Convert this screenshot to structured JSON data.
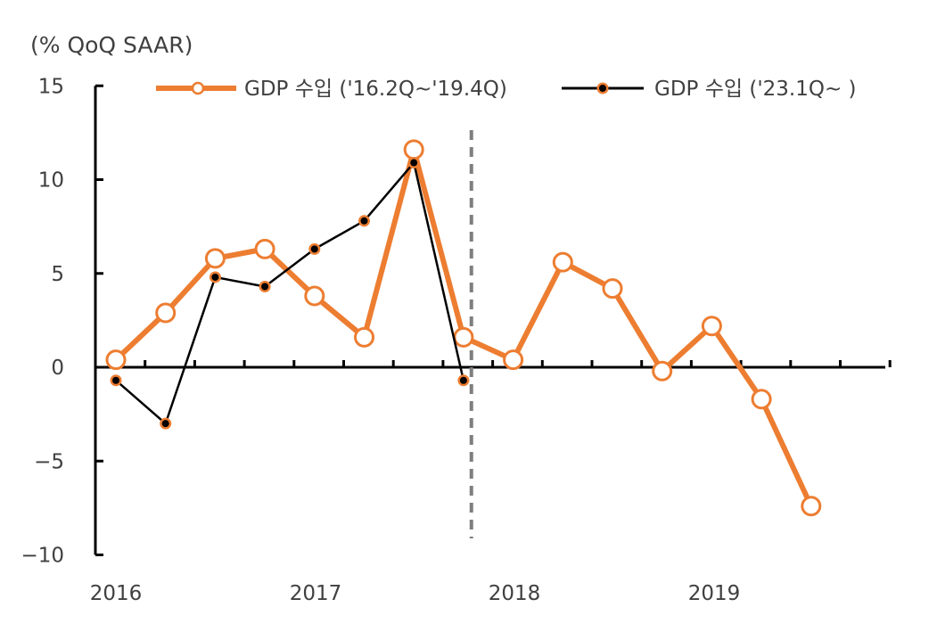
{
  "chart_data": {
    "type": "line",
    "unit_label": "(% QoQ SAAR)",
    "ylim": [
      -10,
      15
    ],
    "yticks": [
      15,
      10,
      5,
      0,
      -5,
      -10
    ],
    "ytick_labels": [
      "15",
      "10",
      "5",
      "0",
      "−5",
      "−10"
    ],
    "x_year_labels": [
      "2016",
      "2017",
      "2018",
      "2019"
    ],
    "quarters_total": 16,
    "divider_after_quarter": 7.5,
    "series": [
      {
        "name": "GDP 수입 ('16.2Q~'19.4Q)",
        "color": "#ED7D31",
        "marker": "hollow-circle",
        "values": [
          0.4,
          2.9,
          5.8,
          6.3,
          3.8,
          1.6,
          11.6,
          1.6,
          0.4,
          5.6,
          4.2,
          -0.2,
          2.2,
          -1.7,
          -7.4
        ]
      },
      {
        "name": "GDP 수입 ('23.1Q~ )",
        "color": "#000000",
        "marker": "filled-dot",
        "values": [
          -0.7,
          -3.0,
          4.8,
          4.3,
          6.3,
          7.8,
          10.9,
          -0.7
        ]
      }
    ]
  }
}
